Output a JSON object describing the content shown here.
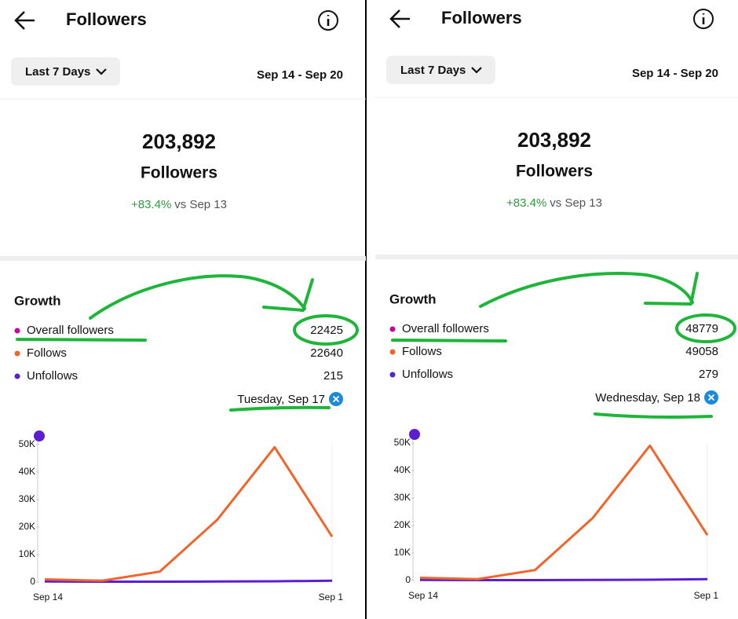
{
  "panels": [
    {
      "header": {
        "title": "Followers"
      },
      "filter": "Last 7 Days",
      "date_range": "Sep 14 - Sep 20",
      "summary": {
        "total": "203,892",
        "label": "Followers",
        "change": "+83.4%",
        "comparison": "vs Sep 13"
      },
      "growth": {
        "title": "Growth",
        "legend": [
          {
            "name": "Overall followers",
            "value": 22425,
            "color": "#c800a1"
          },
          {
            "name": "Follows",
            "value": 22640,
            "color": "#f0652b"
          },
          {
            "name": "Unfollows",
            "value": 215,
            "color": "#5b1fd1"
          }
        ],
        "selected_date": "Tuesday, Sep 17"
      },
      "chart_data": {
        "type": "line",
        "categories": [
          "Sep 14",
          null,
          null,
          null,
          null,
          "Sep 1"
        ],
        "series": [
          {
            "color": "#f0652b",
            "values": [
              1000,
              500,
              3800,
              22640,
              49058,
              16500
            ]
          },
          {
            "color": "#5b1fd1",
            "values": [
              200,
              150,
              150,
              215,
              279,
              500
            ]
          }
        ],
        "ylim": [
          0,
          50000
        ],
        "yticks": [
          0,
          {
            "value": 10000,
            "label": "10K"
          },
          {
            "value": 20000,
            "label": "20K"
          },
          {
            "value": 30000,
            "label": "30K"
          },
          {
            "value": 40000,
            "label": "40K"
          },
          {
            "value": 50000,
            "label": "50K"
          }
        ]
      }
    },
    {
      "header": {
        "title": "Followers"
      },
      "filter": "Last 7 Days",
      "date_range": "Sep 14 - Sep 20",
      "summary": {
        "total": "203,892",
        "label": "Followers",
        "change": "+83.4%",
        "comparison": "vs Sep 13"
      },
      "growth": {
        "title": "Growth",
        "legend": [
          {
            "name": "Overall followers",
            "value": 48779,
            "color": "#c800a1"
          },
          {
            "name": "Follows",
            "value": 49058,
            "color": "#f0652b"
          },
          {
            "name": "Unfollows",
            "value": 279,
            "color": "#5b1fd1"
          }
        ],
        "selected_date": "Wednesday, Sep 18"
      },
      "chart_data": {
        "type": "line",
        "categories": [
          "Sep 14",
          null,
          null,
          null,
          null,
          "Sep 1"
        ],
        "series": [
          {
            "color": "#f0652b",
            "values": [
              1000,
              500,
              3800,
              22640,
              49058,
              16500
            ]
          },
          {
            "color": "#5b1fd1",
            "values": [
              200,
              150,
              150,
              215,
              279,
              500
            ]
          }
        ],
        "ylim": [
          0,
          50000
        ],
        "yticks": [
          0,
          {
            "value": 10000,
            "label": "10K"
          },
          {
            "value": 20000,
            "label": "20K"
          },
          {
            "value": 30000,
            "label": "30K"
          },
          {
            "value": 40000,
            "label": "40K"
          },
          {
            "value": 50000,
            "label": "50K"
          }
        ]
      }
    }
  ]
}
